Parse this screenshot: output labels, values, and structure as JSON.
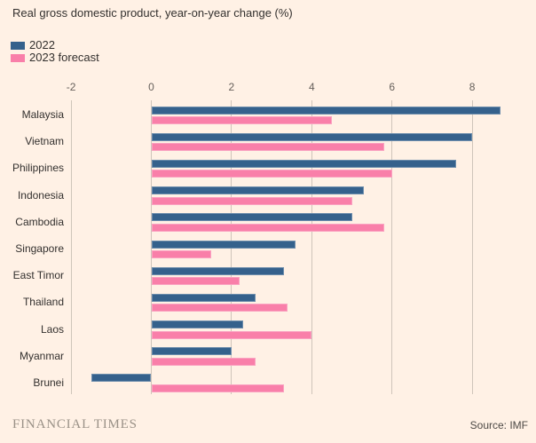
{
  "title": "Real gross domestic product, year-on-year change (%)",
  "legend": {
    "items": [
      {
        "label": "2022",
        "color": "#35618C"
      },
      {
        "label": "2023 forecast",
        "color": "#F97FA9"
      }
    ]
  },
  "chart_data": {
    "type": "bar",
    "orientation": "horizontal",
    "title": "Real gross domestic product, year-on-year change (%)",
    "categories": [
      "Malaysia",
      "Vietnam",
      "Philippines",
      "Indonesia",
      "Cambodia",
      "Singapore",
      "East Timor",
      "Thailand",
      "Laos",
      "Myanmar",
      "Brunei"
    ],
    "series": [
      {
        "name": "2022",
        "color": "#35618C",
        "values": [
          8.7,
          8.0,
          7.6,
          5.3,
          5.0,
          3.6,
          3.3,
          2.6,
          2.3,
          2.0,
          -1.5
        ]
      },
      {
        "name": "2023 forecast",
        "color": "#F97FA9",
        "values": [
          4.5,
          5.8,
          6.0,
          5.0,
          5.8,
          1.5,
          2.2,
          3.4,
          4.0,
          2.6,
          3.3
        ]
      }
    ],
    "xticks": [
      "-2",
      "0",
      "2",
      "4",
      "6",
      "8"
    ],
    "xtick_values": [
      -2,
      0,
      2,
      4,
      6,
      8
    ],
    "xlim": [
      -2.25,
      9.55
    ],
    "grid": true,
    "legend_position": "top-left",
    "xlabel": "",
    "ylabel": ""
  },
  "footer": {
    "brand": "FINANCIAL TIMES",
    "source": "Source: IMF"
  },
  "colors": {
    "background": "#FFF1E5",
    "text": "#33302E",
    "tick": "#66605B",
    "gridline": "#CFC5BA",
    "bar_2022": "#35618C",
    "bar_2023_forecast": "#F97FA9",
    "brand": "#9A9187",
    "source_text": "#4D4945"
  }
}
